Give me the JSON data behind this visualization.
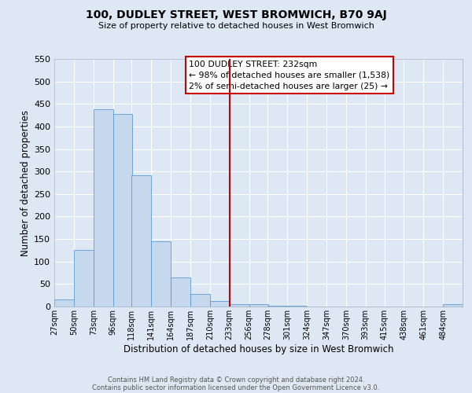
{
  "title": "100, DUDLEY STREET, WEST BROMWICH, B70 9AJ",
  "subtitle": "Size of property relative to detached houses in West Bromwich",
  "xlabel": "Distribution of detached houses by size in West Bromwich",
  "ylabel": "Number of detached properties",
  "bin_labels": [
    "27sqm",
    "50sqm",
    "73sqm",
    "96sqm",
    "118sqm",
    "141sqm",
    "164sqm",
    "187sqm",
    "210sqm",
    "233sqm",
    "256sqm",
    "278sqm",
    "301sqm",
    "324sqm",
    "347sqm",
    "370sqm",
    "393sqm",
    "415sqm",
    "438sqm",
    "461sqm",
    "484sqm"
  ],
  "bin_edges": [
    27,
    50,
    73,
    96,
    118,
    141,
    164,
    187,
    210,
    233,
    256,
    278,
    301,
    324,
    347,
    370,
    393,
    415,
    438,
    461,
    484
  ],
  "bar_heights": [
    15,
    125,
    438,
    428,
    292,
    145,
    65,
    28,
    12,
    5,
    6,
    1,
    1,
    0,
    0,
    0,
    0,
    0,
    0,
    0,
    5
  ],
  "bar_color": "#c5d8ee",
  "bar_edge_color": "#5b9bd5",
  "vline_x": 233,
  "vline_color": "#cc0000",
  "ylim": [
    0,
    550
  ],
  "yticks": [
    0,
    50,
    100,
    150,
    200,
    250,
    300,
    350,
    400,
    450,
    500,
    550
  ],
  "annotation_title": "100 DUDLEY STREET: 232sqm",
  "annotation_line1": "← 98% of detached houses are smaller (1,538)",
  "annotation_line2": "2% of semi-detached houses are larger (25) →",
  "annotation_box_color": "#cc0000",
  "footer_line1": "Contains HM Land Registry data © Crown copyright and database right 2024.",
  "footer_line2": "Contains public sector information licensed under the Open Government Licence v3.0.",
  "bg_color": "#dde8f4",
  "plot_bg_color": "#dde8f4"
}
